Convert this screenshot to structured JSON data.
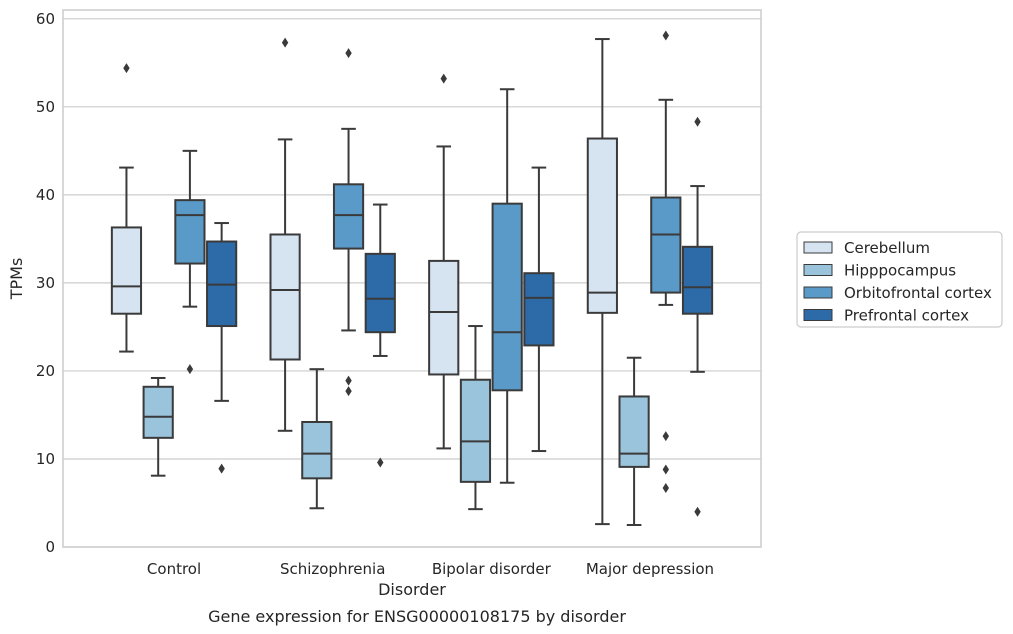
{
  "chart_data": {
    "type": "box",
    "title": "Gene expression for ENSG00000108175 by disorder",
    "xlabel": "Disorder",
    "ylabel": "TPMs",
    "ylim": [
      0,
      61
    ],
    "yticks": [
      0,
      10,
      20,
      30,
      40,
      50,
      60
    ],
    "grid": "horizontal",
    "legend_position": "right",
    "categories": [
      "Control",
      "Schizophrenia",
      "Bipolar disorder",
      "Major depression"
    ],
    "series": [
      {
        "name": "Cerebellum",
        "color": "#d6e4f2",
        "boxes": [
          {
            "whislo": 22.2,
            "q1": 26.5,
            "med": 29.6,
            "q3": 36.3,
            "whishi": 43.1,
            "fliers": [
              54.4
            ]
          },
          {
            "whislo": 13.2,
            "q1": 21.3,
            "med": 29.2,
            "q3": 35.5,
            "whishi": 46.3,
            "fliers": [
              57.3
            ]
          },
          {
            "whislo": 11.2,
            "q1": 19.6,
            "med": 26.7,
            "q3": 32.5,
            "whishi": 45.5,
            "fliers": [
              53.2
            ]
          },
          {
            "whislo": 2.6,
            "q1": 26.6,
            "med": 28.9,
            "q3": 46.4,
            "whishi": 57.7,
            "fliers": []
          }
        ]
      },
      {
        "name": "Hipppocampus",
        "color": "#9ac3dc",
        "boxes": [
          {
            "whislo": 8.1,
            "q1": 12.4,
            "med": 14.8,
            "q3": 18.2,
            "whishi": 19.2,
            "fliers": []
          },
          {
            "whislo": 4.4,
            "q1": 7.8,
            "med": 10.6,
            "q3": 14.2,
            "whishi": 20.2,
            "fliers": []
          },
          {
            "whislo": 4.3,
            "q1": 7.4,
            "med": 12.0,
            "q3": 19.0,
            "whishi": 25.1,
            "fliers": []
          },
          {
            "whislo": 2.5,
            "q1": 9.1,
            "med": 10.6,
            "q3": 17.1,
            "whishi": 21.5,
            "fliers": []
          }
        ]
      },
      {
        "name": "Orbitofrontal cortex",
        "color": "#5a9ac9",
        "boxes": [
          {
            "whislo": 27.3,
            "q1": 32.2,
            "med": 37.7,
            "q3": 39.4,
            "whishi": 45.0,
            "fliers": [
              20.2
            ]
          },
          {
            "whislo": 24.6,
            "q1": 33.9,
            "med": 37.7,
            "q3": 41.2,
            "whishi": 47.5,
            "fliers": [
              56.1,
              18.9,
              17.7
            ]
          },
          {
            "whislo": 7.3,
            "q1": 17.8,
            "med": 24.4,
            "q3": 39.0,
            "whishi": 52.0,
            "fliers": []
          },
          {
            "whislo": 27.5,
            "q1": 28.9,
            "med": 35.5,
            "q3": 39.7,
            "whishi": 50.8,
            "fliers": [
              58.1,
              12.6,
              8.8,
              6.7
            ]
          }
        ]
      },
      {
        "name": "Prefrontal cortex",
        "color": "#2c6aa8",
        "boxes": [
          {
            "whislo": 16.6,
            "q1": 25.1,
            "med": 29.8,
            "q3": 34.7,
            "whishi": 36.8,
            "fliers": [
              8.9
            ]
          },
          {
            "whislo": 21.7,
            "q1": 24.4,
            "med": 28.2,
            "q3": 33.3,
            "whishi": 38.9,
            "fliers": [
              9.6
            ]
          },
          {
            "whislo": 10.9,
            "q1": 22.9,
            "med": 28.3,
            "q3": 31.1,
            "whishi": 43.1,
            "fliers": []
          },
          {
            "whislo": 19.9,
            "q1": 26.5,
            "med": 29.5,
            "q3": 34.1,
            "whishi": 41.0,
            "fliers": [
              48.3,
              4.0
            ]
          }
        ]
      }
    ]
  }
}
